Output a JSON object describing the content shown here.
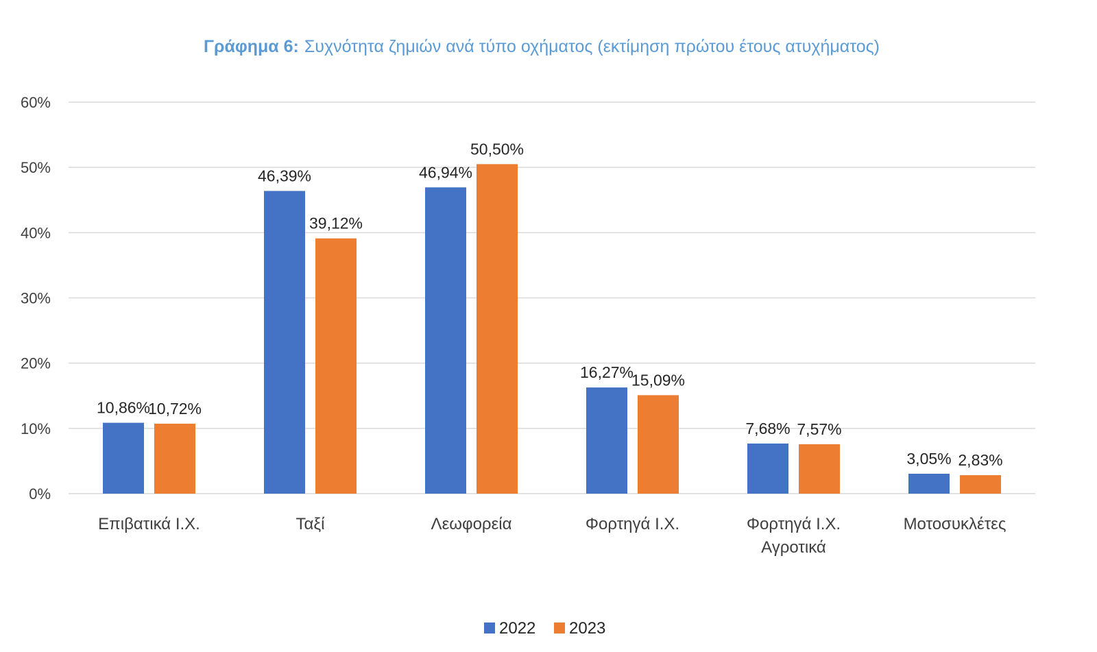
{
  "chart_data": {
    "type": "bar",
    "title_prefix": "Γράφημα 6:",
    "title": "Συχνότητα ζημιών ανά τύπο οχήματος (εκτίμηση πρώτου έτους ατυχήματος)",
    "categories": [
      [
        "Επιβατικά Ι.Χ."
      ],
      [
        "Ταξί"
      ],
      [
        "Λεωφορεία"
      ],
      [
        "Φορτηγά Ι.Χ."
      ],
      [
        "Φορτηγά Ι.Χ.",
        "Αγροτικά"
      ],
      [
        "Μοτοσυκλέτες"
      ]
    ],
    "series": [
      {
        "name": "2022",
        "color": "#4472c4",
        "values": [
          10.86,
          46.39,
          46.94,
          16.27,
          7.68,
          3.05
        ],
        "labels": [
          "10,86%",
          "46,39%",
          "46,94%",
          "16,27%",
          "7,68%",
          "3,05%"
        ]
      },
      {
        "name": "2023",
        "color": "#ed7d31",
        "values": [
          10.72,
          39.12,
          50.5,
          15.09,
          7.57,
          2.83
        ],
        "labels": [
          "10,72%",
          "39,12%",
          "50,50%",
          "15,09%",
          "7,57%",
          "2,83%"
        ]
      }
    ],
    "ylim": [
      0,
      60
    ],
    "yticks": [
      0,
      10,
      20,
      30,
      40,
      50,
      60
    ],
    "ytick_labels": [
      "0%",
      "10%",
      "20%",
      "30%",
      "40%",
      "50%",
      "60%"
    ],
    "grid": true,
    "legend_position": "bottom"
  }
}
